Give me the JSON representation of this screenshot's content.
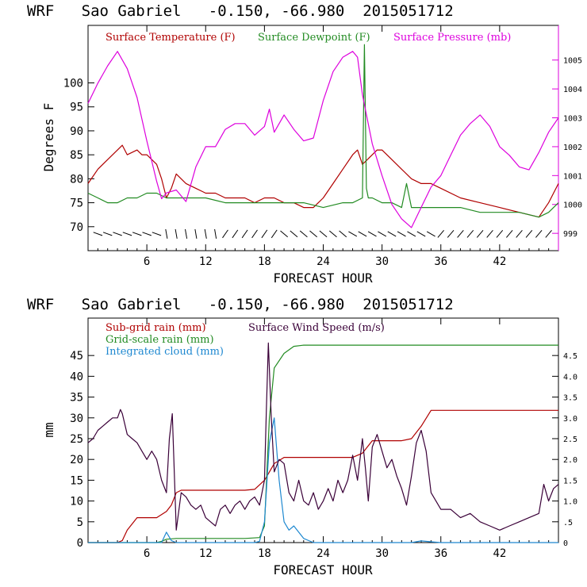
{
  "charts": [
    {
      "title": "WRF   Sao Gabriel   -0.150, -66.980  2015051712",
      "xlabel": "FORECAST HOUR",
      "ylabel": "Degrees F",
      "legend": [
        {
          "label": "Surface Temperature (F)",
          "color": "#b00000"
        },
        {
          "label": "Surface Dewpoint (F)",
          "color": "#228b22"
        },
        {
          "label": "Surface Pressure (mb)",
          "color": "#dd00dd"
        }
      ]
    },
    {
      "title": "WRF   Sao Gabriel   -0.150, -66.980  2015051712",
      "xlabel": "FORECAST HOUR",
      "ylabel": "mm",
      "legend": [
        {
          "label": "Sub-grid rain (mm)",
          "color": "#b00000"
        },
        {
          "label": "Surface Wind Speed (m/s)",
          "color": "#3a0038"
        },
        {
          "label": "Grid-scale rain (mm)",
          "color": "#228b22"
        },
        {
          "label": "Integrated cloud (mm)",
          "color": "#1e88d0"
        }
      ]
    }
  ],
  "chart_data": [
    {
      "type": "line",
      "title": "WRF   Sao Gabriel   -0.150, -66.980  2015051712",
      "xlabel": "FORECAST HOUR",
      "ylabel": "Degrees F",
      "xlim": [
        0,
        48
      ],
      "ylim": [
        65,
        112
      ],
      "y2lim": [
        998.4,
        1006.2
      ],
      "xticks": [
        6,
        12,
        18,
        24,
        30,
        36,
        42
      ],
      "yticks": [
        70,
        75,
        80,
        85,
        90,
        95,
        100
      ],
      "y2ticks": [
        999,
        1000,
        1001,
        1002,
        1003,
        1004,
        1005
      ],
      "series": [
        {
          "name": "Surface Temperature (F)",
          "color": "#b00000",
          "axis": "left",
          "x": [
            0,
            1,
            2,
            3,
            3.5,
            4,
            5,
            5.5,
            6,
            7,
            7.5,
            8,
            8.5,
            9,
            9.5,
            10,
            11,
            12,
            13,
            14,
            15,
            16,
            17,
            18,
            19,
            20,
            21,
            22,
            23,
            24,
            25,
            26,
            27,
            27.5,
            28,
            28.5,
            29,
            29.5,
            30,
            31,
            32,
            33,
            34,
            35,
            36,
            38,
            40,
            42,
            44,
            46,
            47,
            48
          ],
          "y": [
            79,
            82,
            84,
            86,
            87,
            85,
            86,
            85,
            85,
            83,
            80,
            76,
            78,
            81,
            80,
            79,
            78,
            77,
            77,
            76,
            76,
            76,
            75,
            76,
            76,
            75,
            75,
            74,
            74,
            76,
            79,
            82,
            85,
            86,
            83,
            84,
            85,
            86,
            86,
            84,
            82,
            80,
            79,
            79,
            78,
            76,
            75,
            74,
            73,
            72,
            75,
            79
          ]
        },
        {
          "name": "Surface Dewpoint (F)",
          "color": "#228b22",
          "axis": "left",
          "x": [
            0,
            1,
            2,
            3,
            4,
            5,
            6,
            7,
            8,
            9,
            10,
            12,
            14,
            16,
            18,
            20,
            22,
            24,
            26,
            27,
            28,
            28.2,
            28.4,
            28.6,
            29,
            30,
            31,
            32,
            32.5,
            33,
            34,
            36,
            38,
            40,
            42,
            44,
            46,
            47,
            48
          ],
          "y": [
            77,
            76,
            75,
            75,
            76,
            76,
            77,
            77,
            76,
            76,
            76,
            76,
            75,
            75,
            75,
            75,
            75,
            74,
            75,
            75,
            76,
            108,
            78,
            76,
            76,
            75,
            75,
            74,
            79,
            74,
            74,
            74,
            74,
            73,
            73,
            73,
            72,
            73,
            75
          ]
        },
        {
          "name": "Surface Pressure (mb)",
          "color": "#dd00dd",
          "axis": "right",
          "x": [
            0,
            1,
            2,
            3,
            4,
            5,
            6,
            7,
            7.5,
            8,
            9,
            10,
            11,
            12,
            13,
            14,
            15,
            16,
            17,
            18,
            18.5,
            19,
            20,
            21,
            22,
            23,
            24,
            25,
            26,
            27,
            27.5,
            28,
            29,
            30,
            31,
            32,
            33,
            34,
            35,
            36,
            37,
            38,
            39,
            40,
            41,
            42,
            43,
            44,
            45,
            46,
            47,
            48
          ],
          "y": [
            1003.5,
            1004.2,
            1004.8,
            1005.3,
            1004.7,
            1003.7,
            1002.2,
            1000.8,
            1000.2,
            1000.4,
            1000.5,
            1000.1,
            1001.3,
            1002.0,
            1002.0,
            1002.6,
            1002.8,
            1002.8,
            1002.4,
            1002.7,
            1003.3,
            1002.5,
            1003.1,
            1002.6,
            1002.2,
            1002.3,
            1003.6,
            1004.6,
            1005.1,
            1005.3,
            1005.1,
            1003.8,
            1002.1,
            1001.0,
            1000.0,
            999.5,
            999.2,
            999.9,
            1000.6,
            1001.0,
            1001.7,
            1002.4,
            1002.8,
            1003.1,
            1002.7,
            1002.0,
            1001.7,
            1001.3,
            1001.2,
            1001.8,
            1002.5,
            1003.0
          ]
        }
      ],
      "wind_barbs": true
    },
    {
      "type": "line",
      "title": "WRF   Sao Gabriel   -0.150, -66.980  2015051712",
      "xlabel": "FORECAST HOUR",
      "ylabel": "mm",
      "xlim": [
        0,
        48
      ],
      "ylim": [
        0,
        54
      ],
      "y2lim": [
        0,
        5.4
      ],
      "xticks": [
        6,
        12,
        18,
        24,
        30,
        36,
        42
      ],
      "yticks": [
        0,
        5,
        10,
        15,
        20,
        25,
        30,
        35,
        40,
        45
      ],
      "y2ticks": [
        0,
        0.5,
        1.0,
        1.5,
        2.0,
        2.5,
        3.0,
        3.5,
        4.0,
        4.5
      ],
      "y2ticklabels": [
        "0",
        ".5",
        "1.0",
        "1.5",
        "2.0",
        "2.5",
        "3.0",
        "3.5",
        "4.0",
        "4.5"
      ],
      "series": [
        {
          "name": "Sub-grid rain (mm)",
          "color": "#b00000",
          "axis": "left",
          "x": [
            0,
            3,
            3.5,
            4,
            5,
            6,
            7,
            8,
            8.5,
            9,
            9.5,
            10,
            12,
            14,
            16,
            17,
            18,
            18.5,
            19,
            20,
            21,
            24,
            27,
            28,
            29,
            30,
            32,
            33,
            34,
            35,
            36,
            40,
            44,
            48
          ],
          "y": [
            0,
            0,
            0.5,
            3,
            6,
            6,
            6,
            7.5,
            9,
            12,
            12.6,
            12.6,
            12.6,
            12.6,
            12.6,
            12.8,
            15,
            17,
            19,
            20.5,
            20.5,
            20.5,
            20.5,
            21.5,
            24.5,
            24.5,
            24.5,
            25,
            28,
            31.8,
            31.8,
            31.8,
            31.8,
            31.8
          ]
        },
        {
          "name": "Grid-scale rain (mm)",
          "color": "#228b22",
          "axis": "left",
          "x": [
            0,
            7,
            7.5,
            8,
            9,
            12,
            16,
            17.5,
            18,
            18.5,
            19,
            20,
            21,
            22,
            24,
            30,
            36,
            42,
            48
          ],
          "y": [
            0,
            0,
            0.3,
            0.8,
            1,
            1,
            1,
            1.2,
            4,
            30,
            42,
            45.5,
            47.2,
            47.5,
            47.5,
            47.5,
            47.5,
            47.5,
            47.5
          ]
        },
        {
          "name": "Integrated cloud (mm)",
          "color": "#1e88d0",
          "axis": "left",
          "x": [
            0,
            7.5,
            8,
            8.5,
            9,
            12,
            15,
            17,
            17.5,
            18,
            18.5,
            19,
            19.5,
            20,
            20.5,
            21,
            21.5,
            22,
            23,
            24,
            30,
            33,
            34,
            35,
            36,
            40,
            48
          ],
          "y": [
            0,
            0,
            2.5,
            0.5,
            0,
            0,
            0,
            0,
            0.3,
            5,
            24,
            30,
            15,
            5,
            3,
            4,
            2.5,
            1,
            0,
            0,
            0,
            0,
            0.4,
            0.2,
            0,
            0,
            0
          ]
        },
        {
          "name": "Surface Wind Speed (m/s)",
          "color": "#3a0038",
          "axis": "right",
          "x": [
            0,
            0.5,
            1,
            1.5,
            2,
            2.5,
            3,
            3.3,
            3.5,
            4,
            4.5,
            5,
            5.5,
            6,
            6.5,
            7,
            7.5,
            8,
            8.3,
            8.6,
            9,
            9.5,
            10,
            10.5,
            11,
            11.5,
            12,
            12.5,
            13,
            13.5,
            14,
            14.5,
            15,
            15.5,
            16,
            16.5,
            17,
            17.5,
            18,
            18.2,
            18.4,
            18.7,
            19,
            19.5,
            20,
            20.5,
            21,
            21.5,
            22,
            22.5,
            23,
            23.5,
            24,
            24.5,
            25,
            25.5,
            26,
            26.5,
            27,
            27.5,
            28,
            28.3,
            28.6,
            29,
            29.5,
            30,
            30.5,
            31,
            31.5,
            32,
            32.5,
            33,
            33.5,
            34,
            34.5,
            35,
            35.5,
            36,
            37,
            38,
            39,
            40,
            41,
            42,
            43,
            44,
            45,
            46,
            46.5,
            47,
            47.5,
            48
          ],
          "y": [
            2.4,
            2.5,
            2.7,
            2.8,
            2.9,
            3.0,
            3.0,
            3.2,
            3.1,
            2.6,
            2.5,
            2.4,
            2.2,
            2.0,
            2.2,
            2.0,
            1.5,
            1.2,
            2.5,
            3.1,
            0.3,
            1.2,
            1.1,
            0.9,
            0.8,
            0.9,
            0.6,
            0.5,
            0.4,
            0.8,
            0.9,
            0.7,
            0.9,
            1.0,
            0.8,
            1.0,
            1.1,
            0.9,
            1.5,
            3.2,
            4.8,
            3.0,
            1.7,
            2.0,
            1.9,
            1.2,
            1.0,
            1.5,
            1.0,
            0.9,
            1.2,
            0.8,
            1.0,
            1.3,
            1.0,
            1.5,
            1.2,
            1.5,
            2.1,
            1.5,
            2.5,
            1.8,
            1.0,
            2.3,
            2.6,
            2.2,
            1.8,
            2.0,
            1.6,
            1.3,
            0.9,
            1.6,
            2.4,
            2.7,
            2.2,
            1.2,
            1.0,
            0.8,
            0.8,
            0.6,
            0.7,
            0.5,
            0.4,
            0.3,
            0.4,
            0.5,
            0.6,
            0.7,
            1.4,
            1.0,
            1.3,
            1.4
          ]
        }
      ]
    }
  ]
}
